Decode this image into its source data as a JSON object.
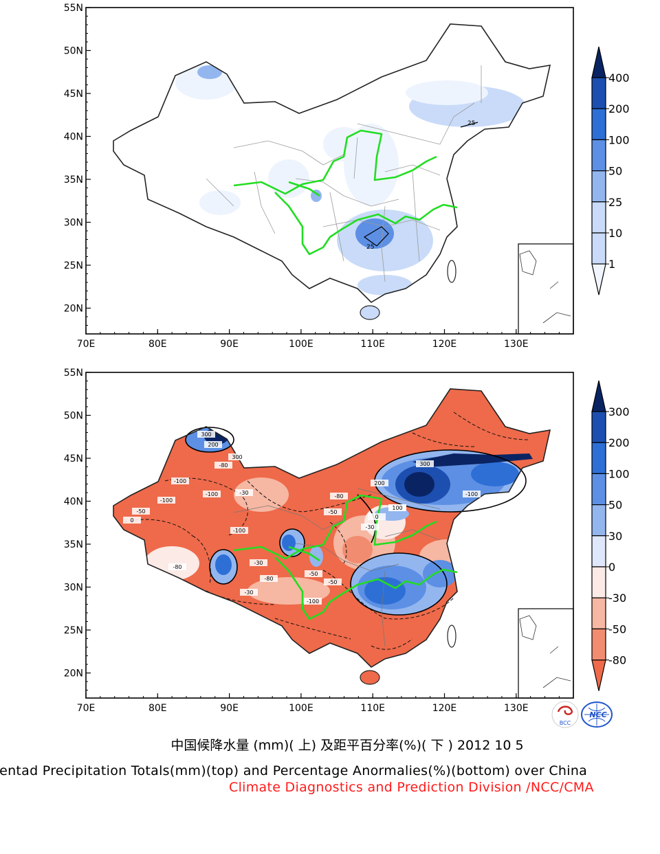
{
  "colors": {
    "river": "#22dd22",
    "border": "#222222",
    "province": "#999999",
    "logo_bcc": "#cc2222",
    "logo_ncc": "#2255cc",
    "division_text": "#ff1a1a"
  },
  "top_map": {
    "lat_labels": [
      "55N",
      "50N",
      "45N",
      "40N",
      "35N",
      "30N",
      "25N",
      "20N"
    ],
    "lon_labels": [
      "70E",
      "80E",
      "90E",
      "100E",
      "110E",
      "120E",
      "130E"
    ],
    "contour_labels": [
      "25",
      "25"
    ],
    "colorbar": {
      "labels": [
        "400",
        "200",
        "100",
        "50",
        "25",
        "10",
        "1"
      ],
      "colors": [
        "#0a2463",
        "#1c4fb0",
        "#2e6fd6",
        "#5d90e4",
        "#93b6ef",
        "#c9dbf8",
        "#f1f6fe"
      ]
    }
  },
  "bottom_map": {
    "lat_labels": [
      "55N",
      "50N",
      "45N",
      "40N",
      "35N",
      "30N",
      "25N",
      "20N"
    ],
    "lon_labels": [
      "70E",
      "80E",
      "90E",
      "100E",
      "110E",
      "120E",
      "130E"
    ],
    "contour_labels": [
      "-100",
      "-80",
      "-100",
      "-50",
      "-30",
      "0",
      "300",
      "200",
      "300",
      "-100",
      "-80",
      "-50",
      "-30",
      "0",
      "100",
      "-100",
      "-80",
      "-30",
      "-50",
      "200",
      "100",
      "300",
      "-100",
      "-80",
      "-30",
      "-50",
      "-100"
    ],
    "colorbar": {
      "labels": [
        "300",
        "200",
        "100",
        "50",
        "30",
        "0",
        "-30",
        "-50",
        "-80"
      ],
      "colors": [
        "#0a2463",
        "#1c4fb0",
        "#2e6fd6",
        "#5d90e4",
        "#93b6ef",
        "#dfe8fb",
        "#fbeae6",
        "#f6b7a3",
        "#f28c70",
        "#ee6a4a"
      ]
    }
  },
  "logos": {
    "bcc_text": "BCC",
    "ncc_text": "NCC"
  },
  "captions": {
    "chinese": "中国候降水量 (mm)( 上) 及距平百分率(%)( 下 ) 2012 10 5",
    "english": "Pentad Precipitation Totals(mm)(top) and Percentage Anormalies(%)(bottom) over China",
    "division": "Climate Diagnostics and Prediction Division /NCC/CMA"
  }
}
